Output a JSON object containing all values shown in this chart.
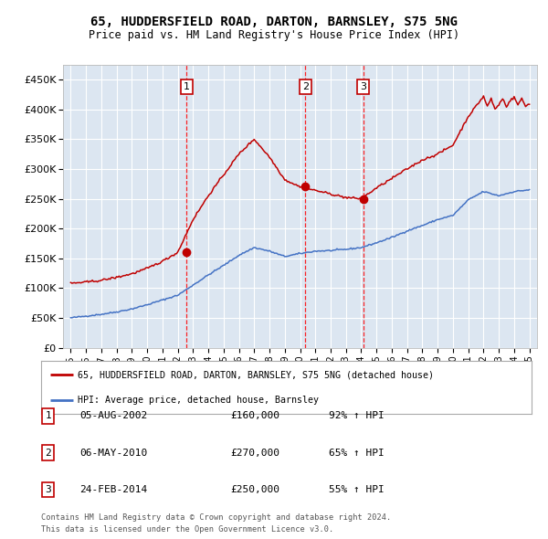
{
  "title": "65, HUDDERSFIELD ROAD, DARTON, BARNSLEY, S75 5NG",
  "subtitle": "Price paid vs. HM Land Registry's House Price Index (HPI)",
  "legend_label_red": "65, HUDDERSFIELD ROAD, DARTON, BARNSLEY, S75 5NG (detached house)",
  "legend_label_blue": "HPI: Average price, detached house, Barnsley",
  "footer_line1": "Contains HM Land Registry data © Crown copyright and database right 2024.",
  "footer_line2": "This data is licensed under the Open Government Licence v3.0.",
  "sales": [
    {
      "label": "1",
      "date_str": "05-AUG-2002",
      "price": 160000,
      "hpi_pct": "92% ↑ HPI",
      "x": 2002.59
    },
    {
      "label": "2",
      "date_str": "06-MAY-2010",
      "price": 270000,
      "hpi_pct": "65% ↑ HPI",
      "x": 2010.34
    },
    {
      "label": "3",
      "date_str": "24-FEB-2014",
      "price": 250000,
      "hpi_pct": "55% ↑ HPI",
      "x": 2014.14
    }
  ],
  "ylim": [
    0,
    475000
  ],
  "xlim_start": 1994.5,
  "xlim_end": 2025.5,
  "plot_bg_color": "#dce6f1",
  "grid_color": "#ffffff",
  "red_line_color": "#c00000",
  "blue_line_color": "#4472c4",
  "sale_marker_color": "#c00000",
  "vline_color": "#ff0000",
  "box_color": "#c00000",
  "ytick_labels": [
    "£0",
    "£50K",
    "£100K",
    "£150K",
    "£200K",
    "£250K",
    "£300K",
    "£350K",
    "£400K",
    "£450K"
  ],
  "ytick_values": [
    0,
    50000,
    100000,
    150000,
    200000,
    250000,
    300000,
    350000,
    400000,
    450000
  ],
  "hpi_anchors_x": [
    1995,
    1996,
    1997,
    1998,
    1999,
    2000,
    2001,
    2002,
    2003,
    2004,
    2005,
    2006,
    2007,
    2008,
    2009,
    2010,
    2011,
    2012,
    2013,
    2014,
    2015,
    2016,
    2017,
    2018,
    2019,
    2020,
    2021,
    2022,
    2023,
    2024,
    2025
  ],
  "hpi_anchors_y": [
    50000,
    53000,
    56000,
    60000,
    65000,
    72000,
    80000,
    88000,
    105000,
    122000,
    138000,
    155000,
    168000,
    162000,
    153000,
    158000,
    162000,
    163000,
    165000,
    168000,
    176000,
    185000,
    196000,
    205000,
    215000,
    222000,
    248000,
    262000,
    255000,
    262000,
    265000
  ],
  "red_anchors_x": [
    1995,
    1996,
    1997,
    1998,
    1999,
    2000,
    2001,
    2002,
    2003,
    2004,
    2005,
    2006,
    2007,
    2008,
    2009,
    2010,
    2011,
    2012,
    2013,
    2014,
    2015,
    2016,
    2017,
    2018,
    2019,
    2020,
    2021,
    2022,
    2022.25,
    2022.5,
    2022.75,
    2023,
    2023.25,
    2023.5,
    2023.75,
    2024,
    2024.25,
    2024.5,
    2024.75,
    2025
  ],
  "red_anchors_y": [
    108000,
    110000,
    113000,
    118000,
    124000,
    133000,
    145000,
    160000,
    215000,
    255000,
    290000,
    325000,
    350000,
    320000,
    282000,
    270000,
    264000,
    258000,
    252000,
    250000,
    268000,
    284000,
    300000,
    315000,
    325000,
    340000,
    388000,
    422000,
    405000,
    418000,
    400000,
    408000,
    418000,
    405000,
    415000,
    420000,
    408000,
    418000,
    405000,
    410000
  ]
}
